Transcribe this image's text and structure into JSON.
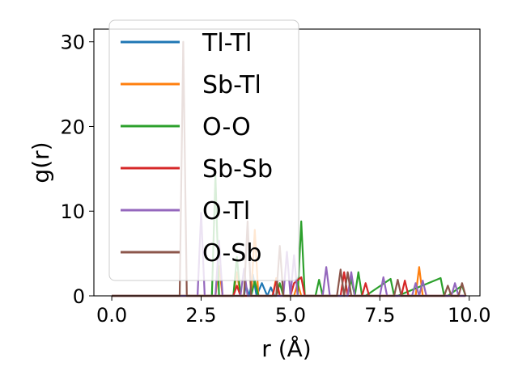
{
  "chart_data": {
    "type": "line",
    "title": "",
    "xlabel": "r (Å)",
    "ylabel": "g(r)",
    "xlim": [
      -0.5,
      10.3
    ],
    "ylim": [
      0,
      31.5
    ],
    "xticks": [
      0.0,
      2.5,
      5.0,
      7.5,
      10.0
    ],
    "xtick_labels": [
      "0.0",
      "2.5",
      "5.0",
      "7.5",
      "10.0"
    ],
    "yticks": [
      0,
      10,
      20,
      30
    ],
    "ytick_labels": [
      "0",
      "10",
      "20",
      "30"
    ],
    "grid": false,
    "legend_position": "top-left",
    "series": [
      {
        "name": "Tl-Tl",
        "color": "#1f77b4",
        "x": [
          0,
          3.7,
          3.75,
          3.85,
          3.95,
          4.05,
          4.2,
          4.35,
          4.45,
          4.55,
          9.9
        ],
        "y": [
          0,
          0,
          1.2,
          0,
          2.5,
          0,
          1.5,
          0,
          1.0,
          0,
          0
        ]
      },
      {
        "name": "Sb-Tl",
        "color": "#ff7f0e",
        "x": [
          0,
          2.9,
          3.0,
          3.1,
          3.4,
          3.5,
          3.6,
          3.9,
          4.0,
          4.1,
          4.5,
          4.6,
          4.7,
          5.1,
          5.2,
          5.3,
          6.6,
          6.7,
          6.8,
          8.5,
          8.6,
          8.7,
          9.9
        ],
        "y": [
          0,
          0,
          3.5,
          0,
          0,
          2.8,
          0,
          0,
          7.8,
          0,
          0,
          2.1,
          0,
          0,
          1.5,
          0,
          0,
          2.2,
          0,
          0,
          3.4,
          0,
          0
        ]
      },
      {
        "name": "O-O",
        "color": "#2ca02c",
        "x": [
          0,
          2.8,
          2.9,
          3.0,
          3.4,
          3.5,
          3.6,
          3.9,
          4.0,
          4.1,
          4.6,
          4.7,
          4.8,
          5.2,
          5.3,
          5.4,
          5.7,
          5.8,
          5.9,
          6.6,
          6.7,
          6.8,
          6.9,
          7.0,
          7.1,
          7.8,
          7.9,
          8.0,
          9.2,
          9.3,
          9.4,
          9.8,
          9.9
        ],
        "y": [
          0,
          0,
          14.2,
          0,
          0,
          4.6,
          0,
          0,
          1.8,
          0,
          0,
          1.5,
          0,
          0,
          8.8,
          0,
          0,
          1.9,
          0,
          0,
          2.0,
          0,
          2.8,
          0,
          0,
          2.0,
          0,
          0,
          2.1,
          0,
          0,
          1.2,
          0
        ]
      },
      {
        "name": "Sb-Sb",
        "color": "#d62728",
        "x": [
          0,
          3.4,
          3.5,
          3.6,
          4.5,
          4.6,
          4.7,
          5.0,
          5.1,
          5.3,
          5.4,
          6.4,
          6.5,
          6.6,
          7.0,
          7.1,
          7.2,
          8.1,
          8.2,
          8.3,
          9.9
        ],
        "y": [
          0,
          0,
          1.2,
          0,
          0,
          1.8,
          0,
          0,
          1.5,
          2.2,
          0,
          0,
          2.8,
          0,
          0,
          1.5,
          0,
          0,
          1.8,
          0,
          0
        ]
      },
      {
        "name": "O-Tl",
        "color": "#9467bd",
        "x": [
          0,
          2.4,
          2.5,
          2.6,
          2.9,
          3.0,
          3.1,
          3.6,
          3.7,
          3.8,
          4.8,
          4.9,
          5.0,
          5.1,
          5.2,
          5.9,
          6.0,
          6.1,
          6.6,
          6.7,
          6.8,
          7.5,
          7.6,
          7.7,
          8.4,
          8.5,
          8.6,
          8.7,
          8.8,
          8.9,
          9.5,
          9.6,
          9.7,
          9.9
        ],
        "y": [
          0,
          0,
          9.8,
          0,
          0,
          6.5,
          0,
          0,
          3.2,
          0,
          0,
          5.2,
          0,
          4.8,
          0,
          0,
          3.4,
          0,
          0,
          2.8,
          0,
          0,
          2.2,
          0,
          0,
          1.5,
          0,
          1.8,
          0,
          0,
          0,
          1.5,
          0,
          0
        ]
      },
      {
        "name": "O-Sb",
        "color": "#8c564b",
        "x": [
          0,
          1.9,
          2.0,
          2.1,
          3.7,
          3.8,
          3.9,
          4.6,
          4.7,
          4.8,
          6.3,
          6.4,
          6.5,
          6.6,
          6.7,
          7.9,
          8.0,
          8.1,
          9.3,
          9.4,
          9.5,
          9.7,
          9.8,
          9.9
        ],
        "y": [
          0,
          0,
          30.0,
          0,
          0,
          8.8,
          0,
          0,
          5.9,
          0,
          0,
          3.1,
          0,
          2.8,
          0,
          0,
          1.9,
          0,
          0,
          1.2,
          0,
          0,
          1.5,
          0
        ]
      }
    ]
  }
}
